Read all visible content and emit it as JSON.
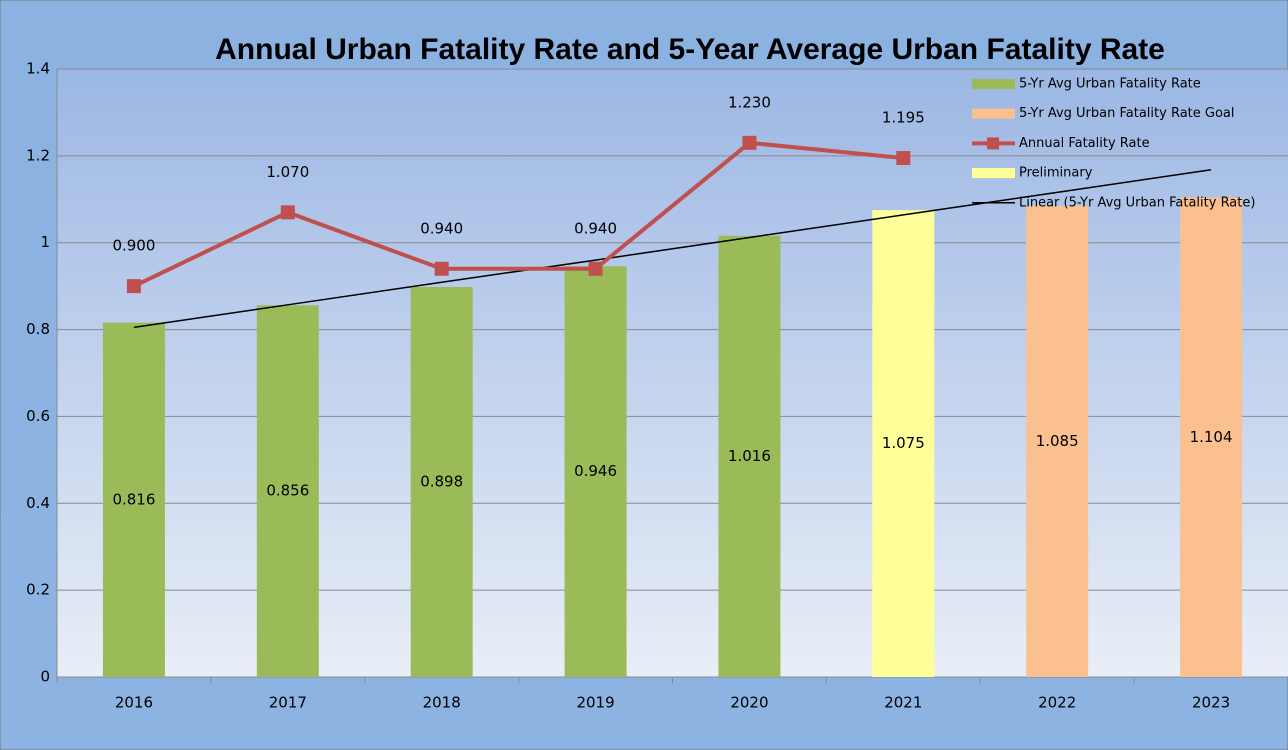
{
  "chart_data": {
    "type": "bar",
    "title": "Annual Urban Fatality Rate and 5-Year Average Urban Fatality Rate",
    "categories": [
      "2016",
      "2017",
      "2018",
      "2019",
      "2020",
      "2021",
      "2022",
      "2023"
    ],
    "series": [
      {
        "name": "5-Yr Avg Urban Fatality Rate",
        "type": "bar",
        "color": "#9bbb59",
        "values": [
          0.816,
          0.856,
          0.898,
          0.946,
          1.016,
          null,
          null,
          null
        ]
      },
      {
        "name": "5-Yr Avg Urban Fatality Rate Goal",
        "type": "bar",
        "color": "#fac090",
        "values": [
          null,
          null,
          null,
          null,
          null,
          null,
          1.085,
          1.104
        ]
      },
      {
        "name": "Annual Fatality Rate",
        "type": "line",
        "color": "#c0504d",
        "values": [
          0.9,
          1.07,
          0.94,
          0.94,
          1.23,
          1.195,
          null,
          null
        ],
        "value_labels": [
          "0.900",
          "1.070",
          "0.940",
          "0.940",
          "1.230",
          "1.195",
          null,
          null
        ]
      },
      {
        "name": "Preliminary",
        "type": "bar",
        "color": "#ffff99",
        "values": [
          null,
          null,
          null,
          null,
          null,
          1.075,
          null,
          null
        ]
      },
      {
        "name": "Linear (5-Yr Avg Urban Fatality Rate)",
        "type": "trend",
        "color": "#000000",
        "values": [
          0.805,
          0.857,
          0.909,
          0.96,
          1.012,
          1.064,
          1.116,
          1.168
        ]
      }
    ],
    "ylim": [
      0,
      1.4
    ],
    "yticks": [
      0,
      0.2,
      0.4,
      0.6,
      0.8,
      1,
      1.2,
      1.4
    ],
    "grid": true,
    "legend": "top-right"
  }
}
